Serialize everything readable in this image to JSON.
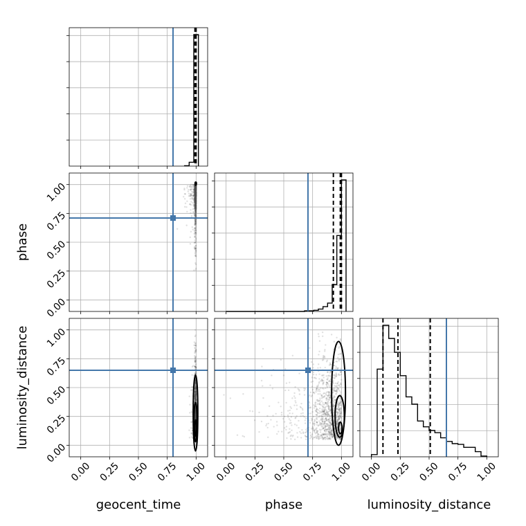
{
  "chart_data": {
    "type": "corner",
    "parameters": [
      "geocent_time",
      "phase",
      "luminosity_distance"
    ],
    "axis_range": [
      -0.1,
      1.1
    ],
    "ticks": [
      0.0,
      0.25,
      0.5,
      0.75,
      1.0
    ],
    "tick_labels": [
      "0.00",
      "0.25",
      "0.50",
      "0.75",
      "1.00"
    ],
    "grid": true,
    "colors": {
      "truth": "#4477aa",
      "histogram": "#000000",
      "samples": "#555555"
    },
    "truths": {
      "geocent_time": 0.8,
      "phase": 0.71,
      "luminosity_distance": 0.65
    },
    "quantiles": {
      "geocent_time": [
        0.99,
        0.995,
        1.0
      ],
      "phase": [
        0.93,
        0.99,
        1.0
      ],
      "luminosity_distance": [
        0.1,
        0.23,
        0.51
      ]
    },
    "histograms": {
      "geocent_time": {
        "bin_edges": [
          0.9,
          0.94,
          0.98,
          1.02
        ],
        "counts": [
          2,
          19,
          650
        ]
      },
      "phase": {
        "bin_edges": [
          0.0,
          0.04,
          0.08,
          0.12,
          0.16,
          0.2,
          0.24,
          0.28,
          0.32,
          0.36,
          0.4,
          0.44,
          0.48,
          0.52,
          0.56,
          0.6,
          0.64,
          0.68,
          0.72,
          0.76,
          0.8,
          0.84,
          0.88,
          0.92,
          0.96,
          1.0,
          1.04
        ],
        "counts": [
          0,
          0,
          0,
          0,
          0,
          0,
          0,
          0,
          0,
          0,
          0,
          0,
          0,
          0,
          0,
          0,
          0,
          1,
          1,
          2,
          4,
          8,
          14,
          45,
          127,
          220
        ]
      },
      "luminosity_distance": {
        "bin_edges": [
          0.0,
          0.05,
          0.1,
          0.15,
          0.2,
          0.25,
          0.3,
          0.35,
          0.4,
          0.45,
          0.5,
          0.55,
          0.6,
          0.65,
          0.7,
          0.75,
          0.8,
          0.85,
          0.9,
          0.95,
          1.0
        ],
        "counts": [
          3,
          120,
          180,
          162,
          143,
          111,
          82,
          72,
          49,
          41,
          36,
          33,
          26,
          21,
          18,
          17,
          13,
          13,
          7,
          1
        ]
      }
    }
  }
}
